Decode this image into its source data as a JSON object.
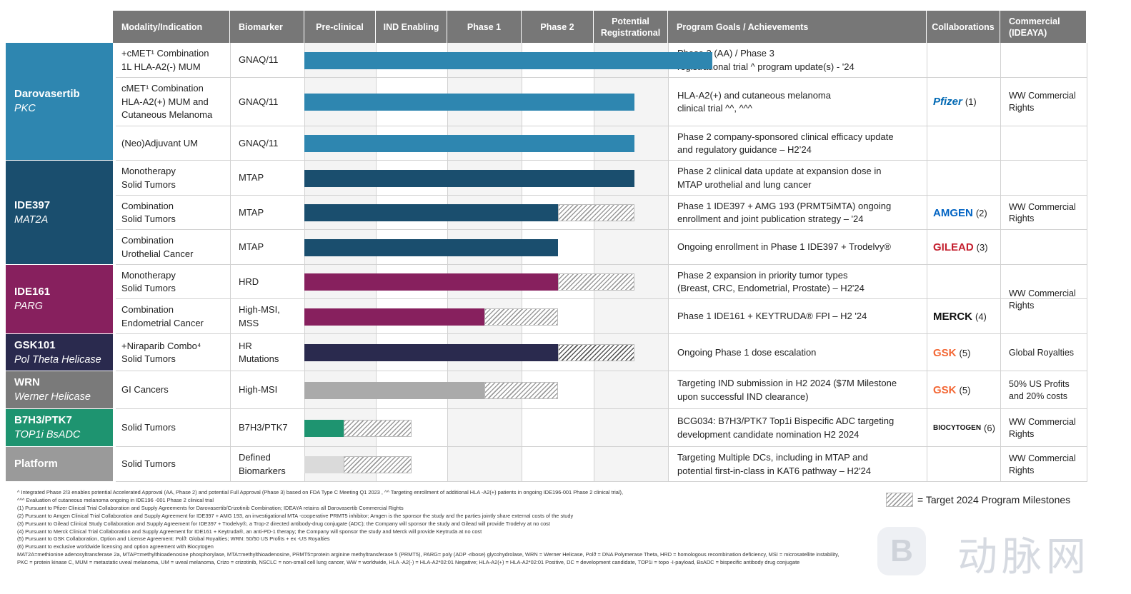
{
  "headers": {
    "modality": "Modality/Indication",
    "biomarker": "Biomarker",
    "preclinical": "Pre-clinical",
    "ind": "IND Enabling",
    "phase1": "Phase 1",
    "phase2": "Phase 2",
    "potential": "Potential\nRegistrational",
    "goals": "Program Goals / Achievements",
    "collab": "Collaborations",
    "commercial": "Commercial\n(IDEAYA)"
  },
  "groups": [
    {
      "name": "Darovasertib",
      "target": "PKC",
      "color": "#2e86b0"
    },
    {
      "name": "IDE397",
      "target": "MAT2A",
      "color": "#1a4e6e"
    },
    {
      "name": "IDE161",
      "target": "PARG",
      "color": "#87205e"
    },
    {
      "name": "GSK101",
      "target": "Pol Theta Helicase",
      "color": "#2a2a4e"
    },
    {
      "name": "WRN",
      "target": "Werner Helicase",
      "color": "#7a7a7a"
    },
    {
      "name": "B7H3/PTK7",
      "target": "TOP1i BsADC",
      "color": "#1e9470"
    },
    {
      "name": "Platform",
      "target": "",
      "color": "#9a9a9a"
    }
  ],
  "rows": [
    {
      "modality": "+cMET¹ Combination\n1L HLA-A2(-) MUM",
      "biomarker": "GNAQ/11",
      "goal": "Phase 2 (AA) / Phase 3\nregistrational trial ^ program update(s) - '24",
      "bar_color": "#2e86b0",
      "progress": 5.6,
      "target_progress": null
    },
    {
      "modality": "cMET¹ Combination\nHLA-A2(+) MUM and\nCutaneous Melanoma",
      "biomarker": "GNAQ/11",
      "goal": "HLA-A2(+) and cutaneous melanoma\nclinical trial ^^, ^^^",
      "bar_color": "#2e86b0",
      "progress": 4.55,
      "target_progress": null
    },
    {
      "modality": "(Neo)Adjuvant UM",
      "biomarker": "GNAQ/11",
      "goal": "Phase 2 company-sponsored clinical efficacy  update\nand regulatory guidance –  H2’24",
      "bar_color": "#2e86b0",
      "progress": 4.55,
      "target_progress": null
    },
    {
      "modality": "Monotherapy\nSolid Tumors",
      "biomarker": "MTAP",
      "goal": "Phase 2 clinical data update at expansion dose in\nMTAP urothelial and lung cancer",
      "bar_color": "#1a4e6e",
      "progress": 4.55,
      "target_progress": null
    },
    {
      "modality": "Combination\nSolid Tumors",
      "biomarker": "MTAP",
      "goal": "Phase 1 IDE397 + AMG 193 (PRMT5iMTA) ongoing\nenrollment and joint publication strategy  – '24",
      "bar_color": "#1a4e6e",
      "progress": 3.5,
      "target_progress": 4.55
    },
    {
      "modality": "Combination\nUrothelial Cancer",
      "biomarker": "MTAP",
      "goal": "Ongoing enrollment in Phase 1 IDE397 + Trodelvy®",
      "bar_color": "#1a4e6e",
      "progress": 3.5,
      "target_progress": null
    },
    {
      "modality": "Monotherapy\nSolid Tumors",
      "biomarker": "HRD",
      "goal": "Phase 2 expansion in priority tumor types\n(Breast, CRC, Endometrial, Prostate) – H2'24",
      "bar_color": "#87205e",
      "progress": 3.5,
      "target_progress": 4.55
    },
    {
      "modality": "Combination\nEndometrial Cancer",
      "biomarker": "High-MSI,\nMSS",
      "goal": "Phase 1 IDE161 + KEYTRUDA® FPI – H2 '24",
      "bar_color": "#87205e",
      "progress": 2.5,
      "target_progress": 3.5
    },
    {
      "modality": "+Niraparib Combo⁴\nSolid Tumors",
      "biomarker": "HR\nMutations",
      "goal": "Ongoing Phase 1 dose escalation",
      "bar_color": "#2a2a4e",
      "progress": 3.5,
      "target_progress": 4.55
    },
    {
      "modality": "GI Cancers",
      "biomarker": "High-MSI",
      "goal": "Targeting IND submission in H2 2024 ($7M Milestone\nupon successful IND clearance)",
      "bar_color": "#aaaaaa",
      "progress": 2.5,
      "target_progress": 3.5
    },
    {
      "modality": "Solid Tumors",
      "biomarker": "B7H3/PTK7",
      "goal": "BCG034: B7H3/PTK7 Top1i Bispecific ADC targeting\ndevelopment candidate nomination H2 2024",
      "bar_color": "#1e9470",
      "progress": 0.55,
      "target_progress": 1.5
    },
    {
      "modality": "Solid Tumors",
      "biomarker": "Defined\nBiomarkers",
      "goal": "Targeting Multiple DCs, including in MTAP and\npotential first-in-class in KAT6 pathway  – H2'24",
      "bar_color": "#dadada",
      "progress": 0.55,
      "target_progress": 1.5
    }
  ],
  "collaborations": [
    {
      "name": "Pfizer",
      "note": "(1)",
      "color": "#0068b3"
    },
    {
      "name": "AMGEN",
      "note": "(2)",
      "color": "#0063c3"
    },
    {
      "name": "GILEAD",
      "note": "(3)",
      "color": "#c41f2e"
    },
    {
      "name": "MERCK",
      "note": "(4)",
      "color": "#111111"
    },
    {
      "name": "GSK",
      "note": "(5)",
      "color": "#f36633"
    },
    {
      "name": "GSK",
      "note": "(5)",
      "color": "#f36633"
    },
    {
      "name": "BIOCYTOGEN",
      "note": "(6)",
      "color": "#111111"
    }
  ],
  "commercial": [
    "WW Commercial\nRights",
    "WW Commercial\nRights",
    "WW Commercial\nRights",
    "Global Royalties",
    "50% US Profits\nand 20% costs",
    "WW Commercial\nRights",
    "WW Commercial\nRights"
  ],
  "legend": "= Target 2024 Program Milestones",
  "watermark": "动脉网",
  "footnotes": [
    "^ Integrated Phase 2/3 enables potential Accelerated Approval (AA, Phase 2) and potential Full Approval (Phase 3) based on FDA   Type C Meeting Q1 2023 , ^^ Targeting enrollment of additional HLA -A2(+) patients in ongoing IDE196-001 Phase 2 clinical trial),",
    "^^^ Evaluation of cutaneous melanoma ongoing in IDE196 -001 Phase 2 clinical trial",
    "(1)  Pursuant to Pfizer Clinical Trial Collaboration and Supply Agreements for  Darovasertib/Crizotinib Combination; IDEAYA retains all  Darovasertib Commercial Rights",
    "(2)  Pursuant to Amgen Clinical Trial Collaboration and Supply Agreement for IDE397 + AMG 193, an investigational MTA  -cooperative PRMT5 inhibitor; Amgen is the sponsor the study and the parties jointly share external costs of the study",
    "(3)  Pursuant to Gilead Clinical Study Collaboration and Supply Agreement for IDE397 +  Trodelvy®, a Trop-2 directed antibody-drug conjugate (ADC); the Company will sponsor the study and Gilead will provide  Trodelvy at no cost",
    "(4)  Pursuant to Merck Clinical Trial Collaboration and Supply Agreement for IDE161 + Keytruda®, an   anti-PD-1 therapy; the Company will sponsor the study and Merck will provide Keytruda at no cost",
    "(5)  Pursuant to GSK Collaboration, Option and License Agreement:  Polϑ: Global Royalties; WRN: 50/50 US Profits + ex -US Royalties",
    "(6)  Pursuant to exclusive worldwide licensing and option agreement with  Biocytogen",
    "MAT2A=methionine adenosyltransferase 2a, MTAP=methylthioadenosine phosphorylase, MTA=methylthioadenosine, PRMT5=protein arginine methyltransferase 5 (PRMT5), PARG= poly (ADP  -ribose) glycohydrolase, WRN = Werner Helicase,  Polϑ = DNA Polymerase Theta, HRD = homologous recombination deficiency,   MSI = microsatellite instability,",
    "PKC = protein kinase C, MUM = metastatic uveal melanoma, UM = uveal melanoma,   Crizo = crizotinib, NSCLC = non-small cell lung cancer, WW = worldwide, HLA -A2(-) = HLA-A2*02:01 Negative; HLA-A2(+) = HLA-A2*02:01 Positive, DC = development candidate, TOP1i = topo -I-payload, BsADC = bispecific antibody drug conjugate"
  ]
}
